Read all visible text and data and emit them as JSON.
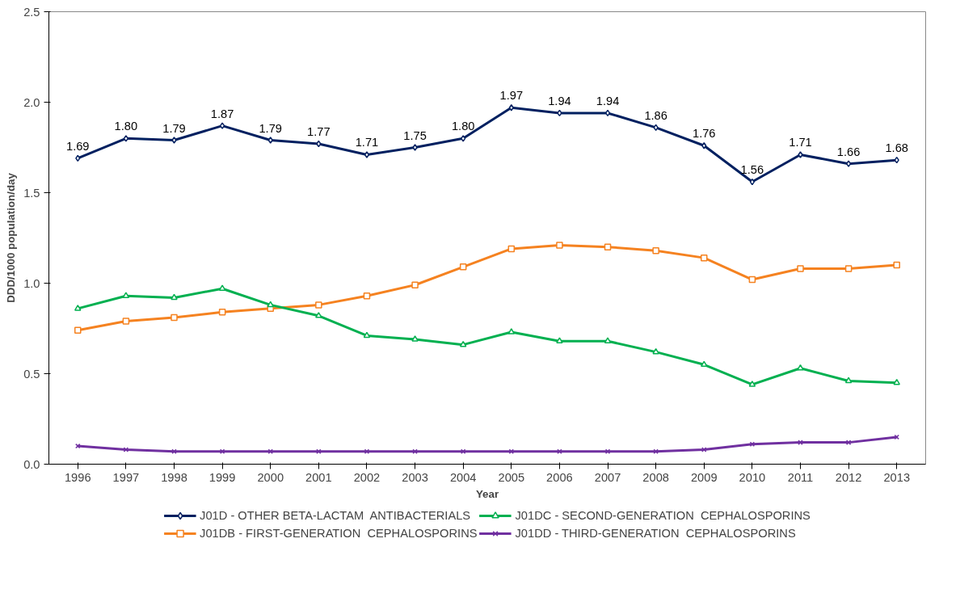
{
  "chart_data": {
    "type": "line",
    "xlabel": "Year",
    "ylabel": "DDD/1000 population/day",
    "categories": [
      "1996",
      "1997",
      "1998",
      "1999",
      "2000",
      "2001",
      "2002",
      "2003",
      "2004",
      "2005",
      "2006",
      "2007",
      "2008",
      "2009",
      "2010",
      "2011",
      "2012",
      "2013"
    ],
    "ylim": [
      0,
      2.5
    ],
    "yticks": [
      {
        "value": 0,
        "label": "0.0"
      },
      {
        "value": 0.5,
        "label": "0.5"
      },
      {
        "value": 1,
        "label": "1.0"
      },
      {
        "value": 1.5,
        "label": "1.5"
      },
      {
        "value": 2,
        "label": "2.0"
      },
      {
        "value": 2.5,
        "label": "2.5"
      }
    ],
    "grid": false,
    "legend": "bottom",
    "series": [
      {
        "name": "J01D - OTHER BETA-LACTAM  ANTIBACTERIALS",
        "color": "#002060",
        "marker": "diamond",
        "values": [
          1.69,
          1.8,
          1.79,
          1.87,
          1.79,
          1.77,
          1.71,
          1.75,
          1.8,
          1.97,
          1.94,
          1.94,
          1.86,
          1.76,
          1.56,
          1.71,
          1.66,
          1.68
        ],
        "value_labels": [
          "1.69",
          "1.80",
          "1.79",
          "1.87",
          "1.79",
          "1.77",
          "1.71",
          "1.75",
          "1.80",
          "1.97",
          "1.94",
          "1.94",
          "1.86",
          "1.76",
          "1.56",
          "1.71",
          "1.66",
          "1.68"
        ]
      },
      {
        "name": "J01DB - FIRST-GENERATION  CEPHALOSPORINS",
        "color": "#f58220",
        "marker": "square",
        "values": [
          0.74,
          0.79,
          0.81,
          0.84,
          0.86,
          0.88,
          0.93,
          0.99,
          1.09,
          1.19,
          1.21,
          1.2,
          1.18,
          1.14,
          1.02,
          1.08,
          1.08,
          1.1
        ]
      },
      {
        "name": "J01DC - SECOND-GENERATION  CEPHALOSPORINS",
        "color": "#00b050",
        "marker": "triangle",
        "values": [
          0.86,
          0.93,
          0.92,
          0.97,
          0.88,
          0.82,
          0.71,
          0.69,
          0.66,
          0.73,
          0.68,
          0.68,
          0.62,
          0.55,
          0.44,
          0.53,
          0.46,
          0.45
        ]
      },
      {
        "name": "J01DD - THIRD-GENERATION  CEPHALOSPORINS",
        "color": "#7030a0",
        "marker": "cross",
        "values": [
          0.1,
          0.08,
          0.07,
          0.07,
          0.07,
          0.07,
          0.07,
          0.07,
          0.07,
          0.07,
          0.07,
          0.07,
          0.07,
          0.08,
          0.11,
          0.12,
          0.12,
          0.15
        ]
      }
    ]
  }
}
